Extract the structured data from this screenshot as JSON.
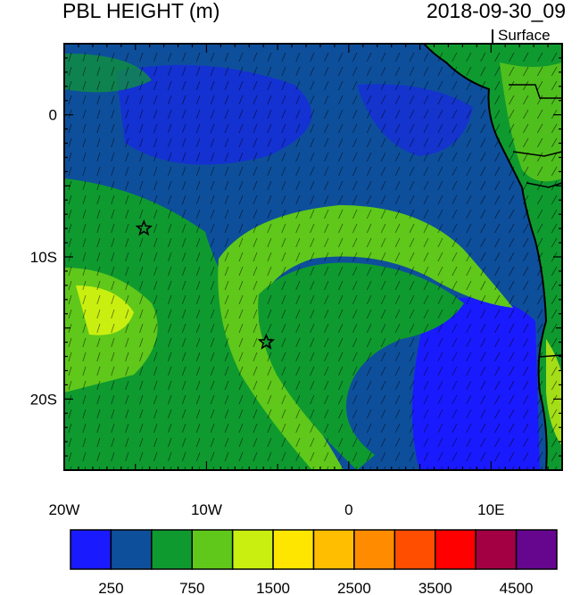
{
  "title": "PBL HEIGHT (m)",
  "valid_time": "2018-09-30_09",
  "level": "Surface",
  "axes": {
    "x_ticks": [
      {
        "value": -20,
        "label": "20W"
      },
      {
        "value": -10,
        "label": "10W"
      },
      {
        "value": 0,
        "label": "0"
      },
      {
        "value": 10,
        "label": "10E"
      }
    ],
    "y_ticks": [
      {
        "value": 0,
        "label": "0"
      },
      {
        "value": -10,
        "label": "10S"
      },
      {
        "value": -20,
        "label": "20S"
      }
    ],
    "lon_range": [
      -20,
      15
    ],
    "lat_range": [
      -25,
      5
    ]
  },
  "colorbar": {
    "colors": [
      "#1a1aff",
      "#0e4f9b",
      "#0f9a2f",
      "#5fc81a",
      "#c9ef10",
      "#ffe600",
      "#ffbe00",
      "#ff8c00",
      "#ff4e00",
      "#ff0000",
      "#a30044",
      "#66068f"
    ],
    "labels": [
      {
        "index": 1,
        "text": "250"
      },
      {
        "index": 3,
        "text": "750"
      },
      {
        "index": 5,
        "text": "1500"
      },
      {
        "index": 7,
        "text": "2500"
      },
      {
        "index": 9,
        "text": "3500"
      },
      {
        "index": 11,
        "text": "4500"
      }
    ]
  },
  "markers": [
    {
      "lon": -14.4,
      "lat": -8.0,
      "symbol": "star"
    },
    {
      "lon": -5.8,
      "lat": -16.0,
      "symbol": "star"
    }
  ]
}
